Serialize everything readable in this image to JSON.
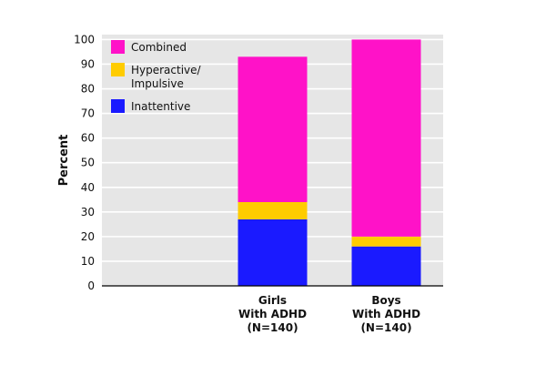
{
  "chart_data": {
    "type": "bar",
    "stacked": true,
    "title": "",
    "xlabel": "",
    "ylabel": "Percent",
    "ylim": [
      0,
      100
    ],
    "yticks": [
      0,
      10,
      20,
      30,
      40,
      50,
      60,
      70,
      80,
      90,
      100
    ],
    "grid": true,
    "legend_position": "top-left",
    "categories": [
      [
        "Girls",
        "With ADHD",
        "(N=140)"
      ],
      [
        "Boys",
        "With ADHD",
        "(N=140)"
      ]
    ],
    "slots": 3,
    "category_slots": [
      1,
      2
    ],
    "series": [
      {
        "name": "Inattentive",
        "color": "#1a1aff",
        "values": [
          27,
          16
        ]
      },
      {
        "name": "Hyperactive/Impulsive",
        "legend_lines": [
          "Hyperactive/",
          "Impulsive"
        ],
        "color": "#ffcc00",
        "values": [
          7,
          4
        ]
      },
      {
        "name": "Combined",
        "color": "#ff12c8",
        "values": [
          59,
          80
        ]
      }
    ],
    "legend_order": [
      2,
      1,
      0
    ],
    "background": "#e6e6e6",
    "gridline_color": "#ffffff"
  }
}
